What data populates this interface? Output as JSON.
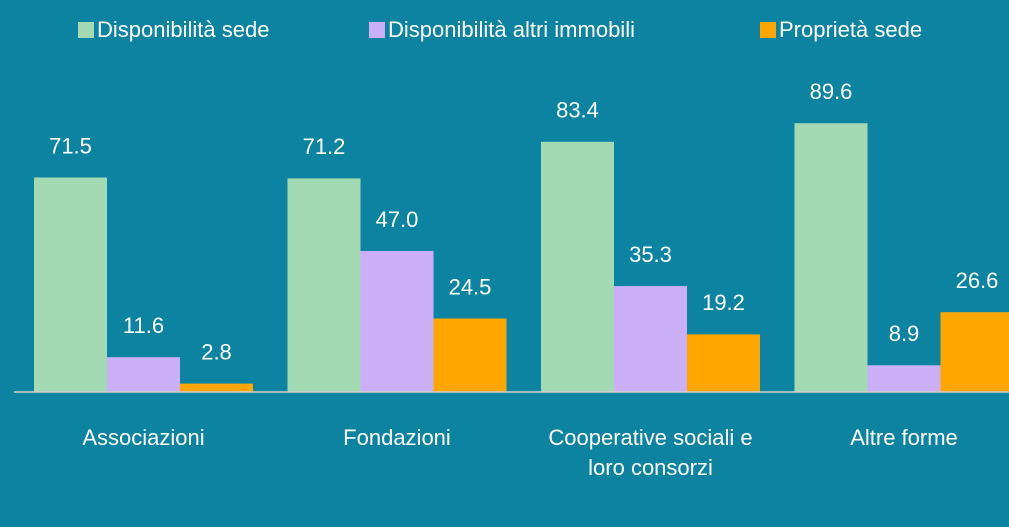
{
  "chart_data": {
    "type": "bar",
    "categories": [
      "Associazioni",
      "Fondazioni",
      "Cooperative sociali e loro consorzi",
      "Altre forme"
    ],
    "series": [
      {
        "name": "Disponibilità sede",
        "color": "#a3dab3",
        "values": [
          71.5,
          71.2,
          83.4,
          89.6
        ],
        "value_labels": [
          "71.5",
          "71.2",
          "83.4",
          "89.6"
        ]
      },
      {
        "name": "Disponibilità altri immobili",
        "color": "#cbb0f7",
        "values": [
          11.6,
          47.0,
          35.3,
          8.9
        ],
        "value_labels": [
          "11.6",
          "47.0",
          "35.3",
          "8.9"
        ]
      },
      {
        "name": "Proprietà sede",
        "color": "#ffa600",
        "values": [
          2.8,
          24.5,
          19.2,
          26.6
        ],
        "value_labels": [
          "2.8",
          "24.5",
          "19.2",
          "26.6"
        ]
      }
    ],
    "ylim": [
      0,
      100
    ],
    "legend": "top"
  }
}
